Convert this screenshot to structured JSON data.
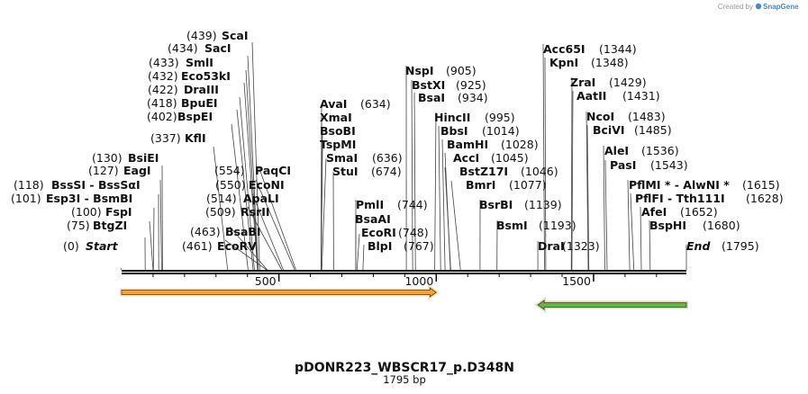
{
  "credit": {
    "prefix": "Created by",
    "brand": "SnapGene"
  },
  "title": "pDONR223_WBSCR17_p.D348N",
  "subtitle": "1795 bp",
  "ruler": {
    "total": 1795,
    "ticks": [
      "500",
      "1000",
      "1500"
    ]
  },
  "features": [
    {
      "name": "orange-feature",
      "start": 0,
      "end": 1000,
      "direction": "forward",
      "color": "#f2a33a"
    },
    {
      "name": "green-feature",
      "start": 1323,
      "end": 1795,
      "direction": "reverse",
      "color": "#66b34a"
    }
  ],
  "sites": [
    {
      "name": "Start",
      "pos": "(0)",
      "site": 0,
      "italic": true
    },
    {
      "name": "BtgZI",
      "pos": "(75)",
      "site": 75
    },
    {
      "name": "FspI",
      "pos": "(100)",
      "site": 100
    },
    {
      "name": "Esp3I - BsmBI",
      "pos": "(101)",
      "site": 101
    },
    {
      "name": "BssSI - BssSαI",
      "pos": "(118)",
      "site": 118
    },
    {
      "name": "EagI",
      "pos": "(127)",
      "site": 127
    },
    {
      "name": "BsiEI",
      "pos": "(130)",
      "site": 130
    },
    {
      "name": "KflI",
      "pos": "(337)",
      "site": 337
    },
    {
      "name": "BspEI",
      "pos": "(402)",
      "site": 402
    },
    {
      "name": "BpuEI",
      "pos": "(418)",
      "site": 418
    },
    {
      "name": "DraIII",
      "pos": "(422)",
      "site": 422
    },
    {
      "name": "Eco53kI",
      "pos": "(432)",
      "site": 432
    },
    {
      "name": "SmlI",
      "pos": "(433)",
      "site": 433
    },
    {
      "name": "SacI",
      "pos": "(434)",
      "site": 434
    },
    {
      "name": "ScaI",
      "pos": "(439)",
      "site": 439
    },
    {
      "name": "EcoRV",
      "pos": "(461)",
      "site": 461
    },
    {
      "name": "BsaBI",
      "pos": "(463)",
      "site": 463
    },
    {
      "name": "RsrII",
      "pos": "(509)",
      "site": 509
    },
    {
      "name": "ApaLI",
      "pos": "(514)",
      "site": 514
    },
    {
      "name": "EcoNI",
      "pos": "(550)",
      "site": 550
    },
    {
      "name": "PaqCI",
      "pos": "(554)",
      "site": 554
    },
    {
      "name": "AvaI",
      "pos": "(634)",
      "site": 634
    },
    {
      "name": "XmaI",
      "pos": "",
      "site": 634
    },
    {
      "name": "BsoBI",
      "pos": "",
      "site": 634
    },
    {
      "name": "TspMI",
      "pos": "",
      "site": 634
    },
    {
      "name": "SmaI",
      "pos": "(636)",
      "site": 636
    },
    {
      "name": "StuI",
      "pos": "(674)",
      "site": 674
    },
    {
      "name": "PmlI",
      "pos": "(744)",
      "site": 744
    },
    {
      "name": "BsaAI",
      "pos": "",
      "site": 744
    },
    {
      "name": "EcoRI",
      "pos": "(748)",
      "site": 748
    },
    {
      "name": "BlpI",
      "pos": "(767)",
      "site": 767
    },
    {
      "name": "NspI",
      "pos": "(905)",
      "site": 905
    },
    {
      "name": "BstXI",
      "pos": "(925)",
      "site": 925
    },
    {
      "name": "BsaI",
      "pos": "(934)",
      "site": 934
    },
    {
      "name": "HincII",
      "pos": "(995)",
      "site": 995
    },
    {
      "name": "BbsI",
      "pos": "(1014)",
      "site": 1014
    },
    {
      "name": "BamHI",
      "pos": "(1028)",
      "site": 1028
    },
    {
      "name": "AccI",
      "pos": "(1045)",
      "site": 1045
    },
    {
      "name": "BstZ17I",
      "pos": "(1046)",
      "site": 1046
    },
    {
      "name": "BmrI",
      "pos": "(1077)",
      "site": 1077
    },
    {
      "name": "BsrBI",
      "pos": "(1139)",
      "site": 1139
    },
    {
      "name": "BsmI",
      "pos": "(1193)",
      "site": 1193
    },
    {
      "name": "DraI",
      "pos": "(1323)",
      "site": 1323
    },
    {
      "name": "Acc65I",
      "pos": "(1344)",
      "site": 1344
    },
    {
      "name": "KpnI",
      "pos": "(1348)",
      "site": 1348
    },
    {
      "name": "ZraI",
      "pos": "(1429)",
      "site": 1429
    },
    {
      "name": "AatII",
      "pos": "(1431)",
      "site": 1431
    },
    {
      "name": "NcoI",
      "pos": "(1483)",
      "site": 1483
    },
    {
      "name": "BciVI",
      "pos": "(1485)",
      "site": 1485
    },
    {
      "name": "AleI",
      "pos": "(1536)",
      "site": 1536
    },
    {
      "name": "PasI",
      "pos": "(1543)",
      "site": 1543
    },
    {
      "name": "PflMI * - AlwNI *",
      "pos": "(1615)",
      "site": 1615
    },
    {
      "name": "PflFI - Tth111I",
      "pos": "(1628)",
      "site": 1628
    },
    {
      "name": "AfeI",
      "pos": "(1652)",
      "site": 1652
    },
    {
      "name": "BspHI",
      "pos": "(1680)",
      "site": 1680
    },
    {
      "name": "End",
      "pos": "(1795)",
      "site": 1795,
      "italic": true
    }
  ]
}
